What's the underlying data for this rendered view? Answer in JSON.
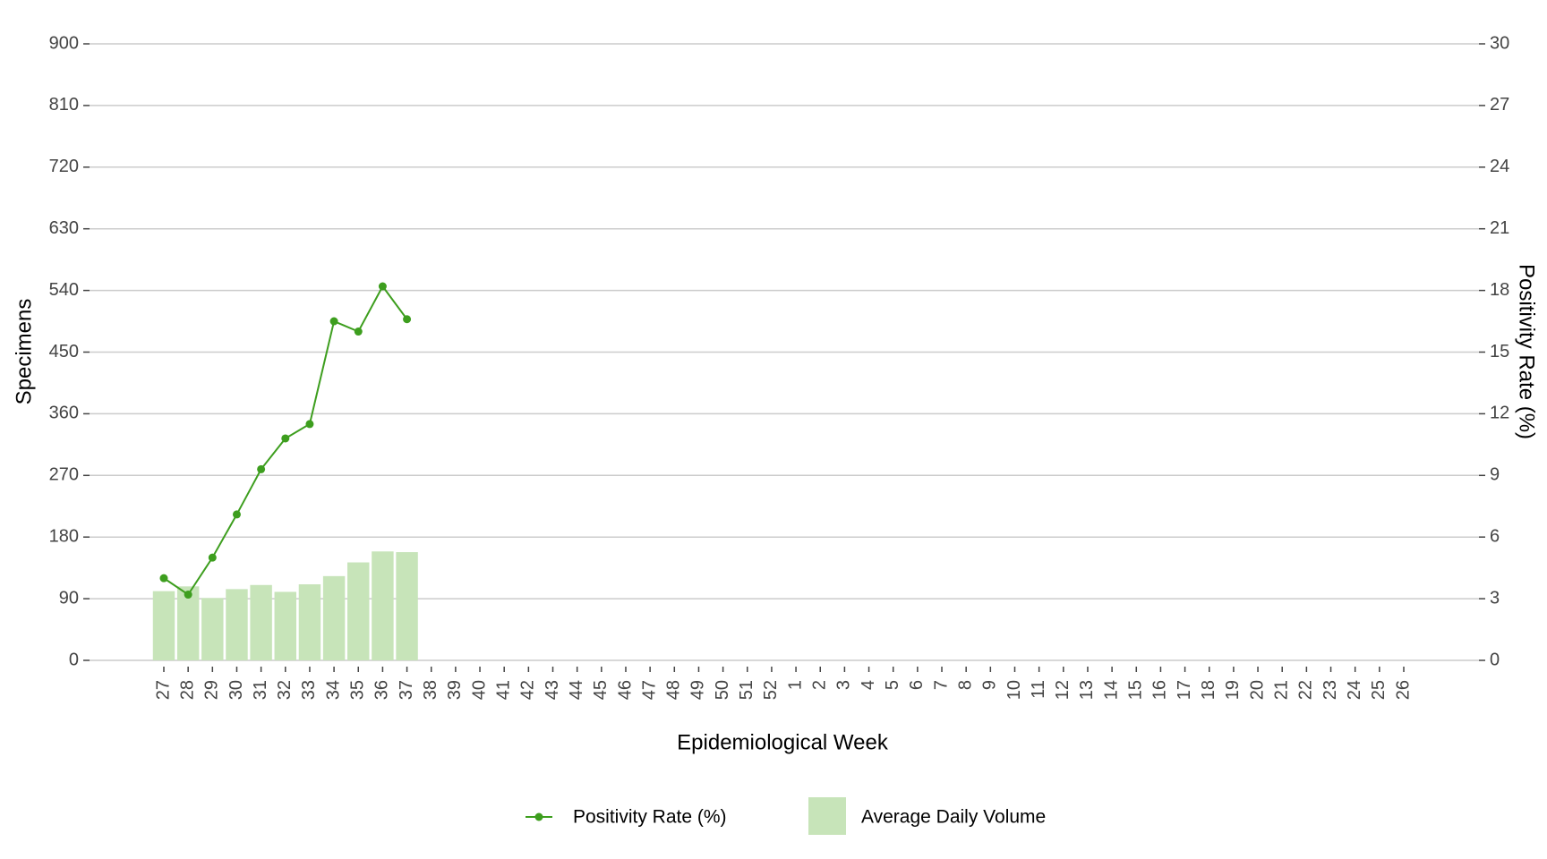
{
  "chart_data": {
    "type": "combo",
    "x_label": "Epidemiological Week",
    "y_label": "Specimens",
    "y2_label": "Positivity Rate (%)",
    "categories": [
      "27",
      "28",
      "29",
      "30",
      "31",
      "32",
      "33",
      "34",
      "35",
      "36",
      "37",
      "38",
      "39",
      "40",
      "41",
      "42",
      "43",
      "44",
      "45",
      "46",
      "47",
      "48",
      "49",
      "50",
      "51",
      "52",
      "1",
      "2",
      "3",
      "4",
      "5",
      "6",
      "7",
      "8",
      "9",
      "10",
      "11",
      "12",
      "13",
      "14",
      "15",
      "16",
      "17",
      "18",
      "19",
      "20",
      "21",
      "22",
      "23",
      "24",
      "25",
      "26"
    ],
    "series": [
      {
        "name": "Positivity Rate (%)",
        "type": "line",
        "axis": "y2",
        "color": "#3d9e1e",
        "values": [
          4.0,
          3.2,
          5.0,
          7.1,
          9.3,
          10.8,
          11.5,
          16.5,
          16.0,
          18.2,
          16.6,
          null,
          null,
          null,
          null,
          null,
          null,
          null,
          null,
          null,
          null,
          null,
          null,
          null,
          null,
          null,
          null,
          null,
          null,
          null,
          null,
          null,
          null,
          null,
          null,
          null,
          null,
          null,
          null,
          null,
          null,
          null,
          null,
          null,
          null,
          null,
          null,
          null,
          null,
          null,
          null,
          null
        ]
      },
      {
        "name": "Average Daily Volume",
        "type": "bar",
        "axis": "y",
        "color": "#c7e4b9",
        "values": [
          101,
          108,
          91,
          104,
          110,
          100,
          111,
          123,
          143,
          159,
          158,
          null,
          null,
          null,
          null,
          null,
          null,
          null,
          null,
          null,
          null,
          null,
          null,
          null,
          null,
          null,
          null,
          null,
          null,
          null,
          null,
          null,
          null,
          null,
          null,
          null,
          null,
          null,
          null,
          null,
          null,
          null,
          null,
          null,
          null,
          null,
          null,
          null,
          null,
          null,
          null,
          null
        ]
      }
    ],
    "ylim": [
      0,
      900
    ],
    "yticks": [
      0,
      90,
      180,
      270,
      360,
      450,
      540,
      630,
      720,
      810,
      900
    ],
    "y2lim": [
      0,
      30
    ],
    "y2ticks": [
      0,
      3,
      6,
      9,
      12,
      15,
      18,
      21,
      24,
      27,
      30
    ],
    "grid": true,
    "legend": "bottom"
  }
}
